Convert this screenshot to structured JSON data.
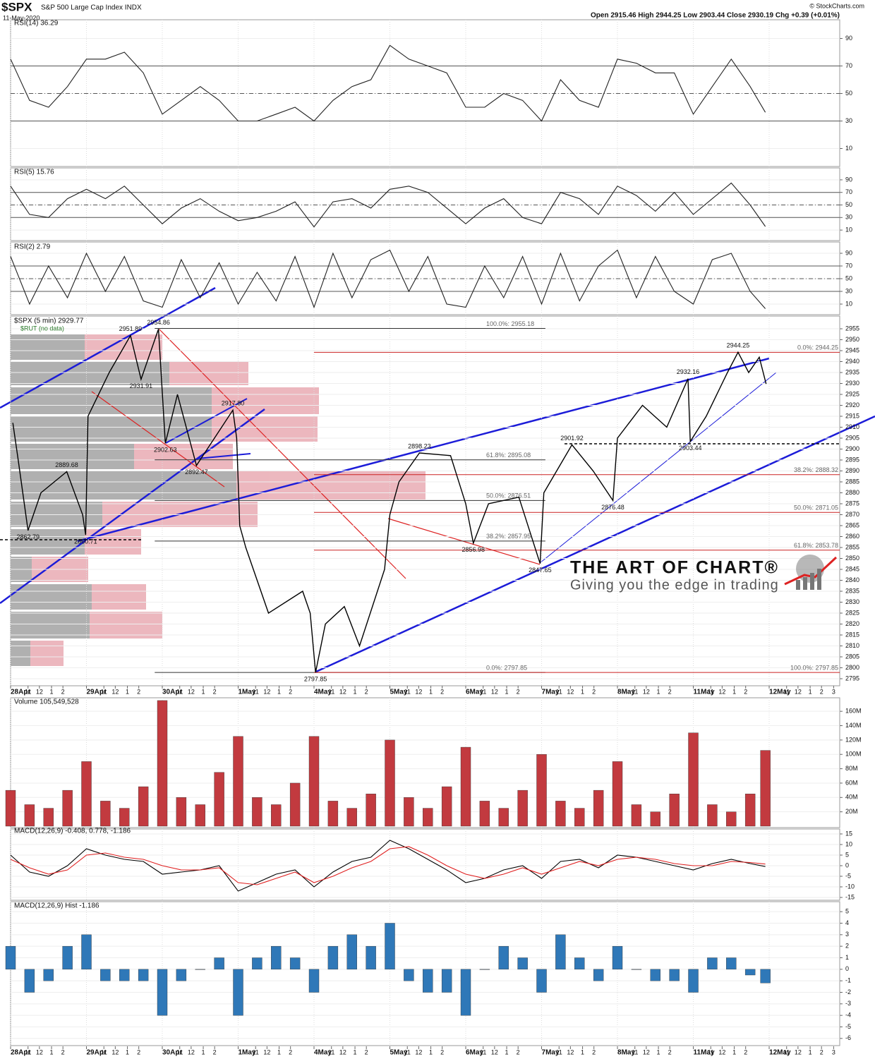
{
  "header": {
    "symbol": "$SPX",
    "name": "S&P 500 Large Cap Index INDX",
    "date": "11-May-2020",
    "quote": "Open 2915.46 High 2944.25 Low 2903.44 Close 2930.19 Chg +0.39 (+0.01%)",
    "credit": "© StockCharts.com"
  },
  "watermark": {
    "title": "THE ART OF CHART®",
    "tagline": "Giving you the edge in trading"
  },
  "chart_data": [
    {
      "type": "line",
      "title": "RSI(14) 36.29",
      "color": "#222222",
      "xlim": [
        0,
        10.93
      ],
      "ylim": [
        0,
        100
      ],
      "yticks": [
        10,
        30,
        50,
        70,
        90
      ],
      "hlines": [
        70,
        50,
        30
      ],
      "x": [
        0,
        0.25,
        0.5,
        0.75,
        1,
        1.25,
        1.5,
        1.75,
        2,
        2.25,
        2.5,
        2.75,
        3,
        3.25,
        3.5,
        3.75,
        4,
        4.25,
        4.5,
        4.75,
        5,
        5.25,
        5.5,
        5.75,
        6,
        6.25,
        6.5,
        6.75,
        7,
        7.25,
        7.5,
        7.75,
        8,
        8.25,
        8.5,
        8.75,
        9,
        9.25,
        9.5,
        9.75,
        9.95
      ],
      "values": [
        75,
        45,
        40,
        55,
        75,
        75,
        80,
        65,
        35,
        45,
        55,
        45,
        30,
        30,
        35,
        40,
        30,
        45,
        55,
        60,
        85,
        75,
        70,
        65,
        40,
        40,
        50,
        45,
        30,
        60,
        45,
        40,
        75,
        72,
        65,
        65,
        35,
        55,
        75,
        55,
        36.29
      ]
    },
    {
      "type": "line",
      "title": "RSI(5) 15.76",
      "color": "#222222",
      "xlim": [
        0,
        10.93
      ],
      "ylim": [
        0,
        100
      ],
      "yticks": [
        10,
        30,
        50,
        70,
        90
      ],
      "hlines": [
        70,
        50,
        30
      ],
      "x": [
        0,
        0.25,
        0.5,
        0.75,
        1,
        1.25,
        1.5,
        1.75,
        2,
        2.25,
        2.5,
        2.75,
        3,
        3.25,
        3.5,
        3.75,
        4,
        4.25,
        4.5,
        4.75,
        5,
        5.25,
        5.5,
        5.75,
        6,
        6.25,
        6.5,
        6.75,
        7,
        7.25,
        7.5,
        7.75,
        8,
        8.25,
        8.5,
        8.75,
        9,
        9.25,
        9.5,
        9.75,
        9.95
      ],
      "values": [
        80,
        35,
        30,
        60,
        75,
        60,
        80,
        50,
        20,
        45,
        60,
        40,
        25,
        30,
        40,
        55,
        15,
        55,
        60,
        45,
        75,
        80,
        70,
        45,
        20,
        45,
        60,
        30,
        20,
        70,
        60,
        35,
        80,
        65,
        40,
        70,
        35,
        60,
        85,
        50,
        15.76
      ]
    },
    {
      "type": "line",
      "title": "RSI(2) 2.79",
      "color": "#222222",
      "xlim": [
        0,
        10.93
      ],
      "ylim": [
        0,
        100
      ],
      "yticks": [
        10,
        30,
        50,
        70,
        90
      ],
      "hlines": [
        70,
        50,
        30
      ],
      "x": [
        0,
        0.25,
        0.5,
        0.75,
        1,
        1.25,
        1.5,
        1.75,
        2,
        2.25,
        2.5,
        2.75,
        3,
        3.25,
        3.5,
        3.75,
        4,
        4.25,
        4.5,
        4.75,
        5,
        5.25,
        5.5,
        5.75,
        6,
        6.25,
        6.5,
        6.75,
        7,
        7.25,
        7.5,
        7.75,
        8,
        8.25,
        8.5,
        8.75,
        9,
        9.25,
        9.5,
        9.75,
        9.95
      ],
      "values": [
        85,
        10,
        70,
        20,
        90,
        30,
        85,
        15,
        5,
        80,
        20,
        75,
        10,
        60,
        15,
        85,
        5,
        90,
        20,
        80,
        95,
        30,
        85,
        10,
        5,
        70,
        20,
        85,
        10,
        90,
        15,
        70,
        95,
        20,
        85,
        30,
        10,
        80,
        90,
        30,
        2.79
      ]
    },
    {
      "type": "line",
      "title": "$SPX (5 min) 2929.77",
      "subtitle": "$RUT (no data)",
      "color": "#000000",
      "xlim": [
        0,
        10.93
      ],
      "ylim": [
        2795,
        2955
      ],
      "yticks": [
        2795,
        2800,
        2805,
        2810,
        2815,
        2820,
        2825,
        2830,
        2835,
        2840,
        2845,
        2850,
        2855,
        2860,
        2865,
        2870,
        2875,
        2880,
        2885,
        2890,
        2895,
        2900,
        2905,
        2910,
        2915,
        2920,
        2925,
        2930,
        2935,
        2940,
        2945,
        2950,
        2955
      ],
      "xticks": [
        {
          "value": 0,
          "label": "28Apr"
        },
        {
          "value": 0.23,
          "label": "11"
        },
        {
          "value": 0.38,
          "label": "12"
        },
        {
          "value": 0.54,
          "label": "1"
        },
        {
          "value": 0.69,
          "label": "2"
        },
        {
          "value": 1,
          "label": "29Apr"
        },
        {
          "value": 1.23,
          "label": "11"
        },
        {
          "value": 1.38,
          "label": "12"
        },
        {
          "value": 1.54,
          "label": "1"
        },
        {
          "value": 1.69,
          "label": "2"
        },
        {
          "value": 2,
          "label": "30Apr"
        },
        {
          "value": 2.23,
          "label": "11"
        },
        {
          "value": 2.38,
          "label": "12"
        },
        {
          "value": 2.54,
          "label": "1"
        },
        {
          "value": 2.69,
          "label": "2"
        },
        {
          "value": 3,
          "label": "1May"
        },
        {
          "value": 3.23,
          "label": "11"
        },
        {
          "value": 3.38,
          "label": "12"
        },
        {
          "value": 3.54,
          "label": "1"
        },
        {
          "value": 3.69,
          "label": "2"
        },
        {
          "value": 4,
          "label": "4May"
        },
        {
          "value": 4.23,
          "label": "11"
        },
        {
          "value": 4.38,
          "label": "12"
        },
        {
          "value": 4.54,
          "label": "1"
        },
        {
          "value": 4.69,
          "label": "2"
        },
        {
          "value": 5,
          "label": "5May"
        },
        {
          "value": 5.23,
          "label": "11"
        },
        {
          "value": 5.38,
          "label": "12"
        },
        {
          "value": 5.54,
          "label": "1"
        },
        {
          "value": 5.69,
          "label": "2"
        },
        {
          "value": 6,
          "label": "6May"
        },
        {
          "value": 6.23,
          "label": "11"
        },
        {
          "value": 6.38,
          "label": "12"
        },
        {
          "value": 6.54,
          "label": "1"
        },
        {
          "value": 6.69,
          "label": "2"
        },
        {
          "value": 7,
          "label": "7May"
        },
        {
          "value": 7.23,
          "label": "11"
        },
        {
          "value": 7.38,
          "label": "12"
        },
        {
          "value": 7.54,
          "label": "1"
        },
        {
          "value": 7.69,
          "label": "2"
        },
        {
          "value": 8,
          "label": "8May"
        },
        {
          "value": 8.23,
          "label": "11"
        },
        {
          "value": 8.38,
          "label": "12"
        },
        {
          "value": 8.54,
          "label": "1"
        },
        {
          "value": 8.69,
          "label": "2"
        },
        {
          "value": 9,
          "label": "11May"
        },
        {
          "value": 9.23,
          "label": "11"
        },
        {
          "value": 9.38,
          "label": "12"
        },
        {
          "value": 9.54,
          "label": "1"
        },
        {
          "value": 9.69,
          "label": "2"
        },
        {
          "value": 10,
          "label": "12May"
        },
        {
          "value": 10.23,
          "label": "11"
        },
        {
          "value": 10.38,
          "label": "12"
        },
        {
          "value": 10.54,
          "label": "1"
        },
        {
          "value": 10.69,
          "label": "2"
        },
        {
          "value": 10.85,
          "label": "3"
        }
      ],
      "x": [
        0.03,
        0.1,
        0.23,
        0.4,
        0.74,
        0.95,
        0.99,
        1.02,
        1.3,
        1.58,
        1.72,
        1.95,
        2.04,
        2.2,
        2.45,
        2.93,
        2.98,
        3.02,
        3.1,
        3.4,
        3.85,
        3.95,
        4.02,
        4.15,
        4.4,
        4.6,
        4.93,
        5.0,
        5.12,
        5.39,
        5.8,
        6.0,
        6.1,
        6.3,
        6.7,
        6.98,
        7.03,
        7.4,
        7.68,
        7.94,
        8.0,
        8.33,
        8.65,
        8.93,
        8.96,
        9.17,
        9.45,
        9.59,
        9.73,
        9.87,
        9.96
      ],
      "values": [
        2912,
        2895,
        2862.79,
        2880,
        2889.68,
        2870,
        2860.71,
        2915,
        2935,
        2951.89,
        2931.91,
        2954.86,
        2902.63,
        2925,
        2892.47,
        2917.8,
        2905,
        2865,
        2855,
        2825,
        2835,
        2825,
        2797.85,
        2820,
        2828,
        2810,
        2845,
        2870,
        2885,
        2898.23,
        2897,
        2875,
        2856.98,
        2875,
        2878,
        2847.65,
        2880,
        2901.92,
        2890,
        2876.48,
        2905,
        2920,
        2910,
        2932.16,
        2903.44,
        2915,
        2935,
        2944.25,
        2935,
        2942,
        2929.77
      ],
      "annotations": [
        {
          "x": 1.58,
          "value": 2951.89,
          "label": "2951.89"
        },
        {
          "x": 1.95,
          "value": 2954.86,
          "label": "2954.86"
        },
        {
          "x": 1.72,
          "value": 2931.91,
          "label": "2931.91"
        },
        {
          "x": 2.93,
          "value": 2917.8,
          "label": "2917.80"
        },
        {
          "x": 2.04,
          "value": 2902.63,
          "label": "2902.63"
        },
        {
          "x": 2.45,
          "value": 2892.47,
          "label": "2892.47"
        },
        {
          "x": 0.74,
          "value": 2889.68,
          "label": "2889.68"
        },
        {
          "x": 0.23,
          "value": 2862.79,
          "label": "2862.79"
        },
        {
          "x": 0.99,
          "value": 2860.71,
          "label": "2860.71"
        },
        {
          "x": 4.02,
          "value": 2797.85,
          "label": "2797.85"
        },
        {
          "x": 5.39,
          "value": 2898.23,
          "label": "2898.23"
        },
        {
          "x": 6.1,
          "value": 2856.98,
          "label": "2856.98"
        },
        {
          "x": 6.98,
          "value": 2847.65,
          "label": "2847.65"
        },
        {
          "x": 7.4,
          "value": 2901.92,
          "label": "2901.92"
        },
        {
          "x": 7.94,
          "value": 2876.48,
          "label": "2876.48"
        },
        {
          "x": 8.93,
          "value": 2932.16,
          "label": "2932.16"
        },
        {
          "x": 8.96,
          "value": 2903.44,
          "label": "2903.44"
        },
        {
          "x": 9.59,
          "value": 2944.25,
          "label": "2944.25"
        }
      ],
      "fib_retracements": [
        {
          "color": "#333333",
          "levels": [
            {
              "value": 2955.18,
              "label": "100.0%: 2955.18"
            },
            {
              "value": 2895.08,
              "label": "61.8%: 2895.08"
            },
            {
              "value": 2876.51,
              "label": "50.0%: 2876.51"
            },
            {
              "value": 2857.95,
              "label": "38.2%: 2857.95"
            },
            {
              "value": 2797.85,
              "label": "0.0%: 2797.85"
            }
          ]
        },
        {
          "color": "#cc2222",
          "levels": [
            {
              "value": 2944.25,
              "label": "0.0%: 2944.25"
            },
            {
              "value": 2888.32,
              "label": "38.2%: 2888.32"
            },
            {
              "value": 2871.05,
              "label": "50.0%: 2871.05"
            },
            {
              "value": 2853.78,
              "label": "61.8%: 2853.78"
            },
            {
              "value": 2797.85,
              "label": "100.0%: 2797.85"
            }
          ]
        }
      ]
    },
    {
      "type": "bar",
      "title": "Volume 105,549,528",
      "color": "#c23a3f",
      "xlim": [
        0,
        10.93
      ],
      "ylim": [
        0,
        170000000
      ],
      "yticks": [
        {
          "value": 20000000,
          "label": "20M"
        },
        {
          "value": 40000000,
          "label": "40M"
        },
        {
          "value": 60000000,
          "label": "60M"
        },
        {
          "value": 80000000,
          "label": "80M"
        },
        {
          "value": 100000000,
          "label": "100M"
        },
        {
          "value": 120000000,
          "label": "120M"
        },
        {
          "value": 140000000,
          "label": "140M"
        },
        {
          "value": 160000000,
          "label": "160M"
        }
      ],
      "x": [
        0,
        0.25,
        0.5,
        0.75,
        1,
        1.25,
        1.5,
        1.75,
        2,
        2.25,
        2.5,
        2.75,
        3,
        3.25,
        3.5,
        3.75,
        4,
        4.25,
        4.5,
        4.75,
        5,
        5.25,
        5.5,
        5.75,
        6,
        6.25,
        6.5,
        6.75,
        7,
        7.25,
        7.5,
        7.75,
        8,
        8.25,
        8.5,
        8.75,
        9,
        9.25,
        9.5,
        9.75,
        9.95
      ],
      "values": [
        50000000,
        30000000,
        25000000,
        50000000,
        90000000,
        35000000,
        25000000,
        55000000,
        175000000,
        40000000,
        30000000,
        75000000,
        125000000,
        40000000,
        30000000,
        60000000,
        125000000,
        35000000,
        25000000,
        45000000,
        120000000,
        40000000,
        25000000,
        55000000,
        110000000,
        35000000,
        25000000,
        50000000,
        100000000,
        35000000,
        25000000,
        50000000,
        90000000,
        30000000,
        20000000,
        45000000,
        130000000,
        30000000,
        20000000,
        45000000,
        105549528
      ]
    },
    {
      "type": "line",
      "title": "MACD(12,26,9) -0.408, 0.778, -1.186",
      "xlim": [
        0,
        10.93
      ],
      "ylim": [
        -15,
        15
      ],
      "yticks": [
        -15,
        -10,
        -5,
        0,
        5,
        10,
        15
      ],
      "x": [
        0,
        0.25,
        0.5,
        0.75,
        1,
        1.25,
        1.5,
        1.75,
        2,
        2.25,
        2.5,
        2.75,
        3,
        3.25,
        3.5,
        3.75,
        4,
        4.25,
        4.5,
        4.75,
        5,
        5.25,
        5.5,
        5.75,
        6,
        6.25,
        6.5,
        6.75,
        7,
        7.25,
        7.5,
        7.75,
        8,
        8.25,
        8.5,
        8.75,
        9,
        9.25,
        9.5,
        9.75,
        9.95
      ],
      "series": [
        {
          "color": "#000000",
          "values": [
            5,
            -3,
            -5,
            0,
            8,
            5,
            3,
            2,
            -4,
            -3,
            -2,
            0,
            -12,
            -8,
            -4,
            -2,
            -10,
            -3,
            2,
            4,
            12,
            8,
            3,
            -2,
            -8,
            -6,
            -2,
            0,
            -6,
            2,
            3,
            -1,
            5,
            4,
            2,
            0,
            -2,
            1,
            3,
            1,
            -0.408
          ]
        },
        {
          "color": "#e02020",
          "values": [
            3,
            -1,
            -4,
            -2,
            5,
            6,
            4,
            3,
            0,
            -2,
            -2,
            -1,
            -8,
            -9,
            -6,
            -3,
            -8,
            -5,
            -1,
            2,
            8,
            9,
            5,
            0,
            -4,
            -6,
            -4,
            -1,
            -4,
            -1,
            2,
            0,
            3,
            4,
            3,
            1,
            0,
            0,
            2,
            1.5,
            0.778
          ]
        }
      ]
    },
    {
      "type": "bar",
      "title": "MACD(12,26,9) Hist -1.186",
      "color": "#2f78b8",
      "xlim": [
        0,
        10.93
      ],
      "ylim": [
        -6.5,
        5.5
      ],
      "yticks": [
        -6,
        -5,
        -4,
        -3,
        -2,
        -1,
        0,
        1,
        2,
        3,
        4,
        5
      ],
      "x": [
        0,
        0.25,
        0.5,
        0.75,
        1,
        1.25,
        1.5,
        1.75,
        2,
        2.25,
        2.5,
        2.75,
        3,
        3.25,
        3.5,
        3.75,
        4,
        4.25,
        4.5,
        4.75,
        5,
        5.25,
        5.5,
        5.75,
        6,
        6.25,
        6.5,
        6.75,
        7,
        7.25,
        7.5,
        7.75,
        8,
        8.25,
        8.5,
        8.75,
        9,
        9.25,
        9.5,
        9.75,
        9.95
      ],
      "values": [
        2,
        -2,
        -1,
        2,
        3,
        -1,
        -1,
        -1,
        -4,
        -1,
        0,
        1,
        -4,
        1,
        2,
        1,
        -2,
        2,
        3,
        2,
        4,
        -1,
        -2,
        -2,
        -4,
        0,
        2,
        1,
        -2,
        3,
        1,
        -1,
        2,
        0,
        -1,
        -1,
        -2,
        1,
        1,
        -0.5,
        -1.186
      ]
    }
  ]
}
